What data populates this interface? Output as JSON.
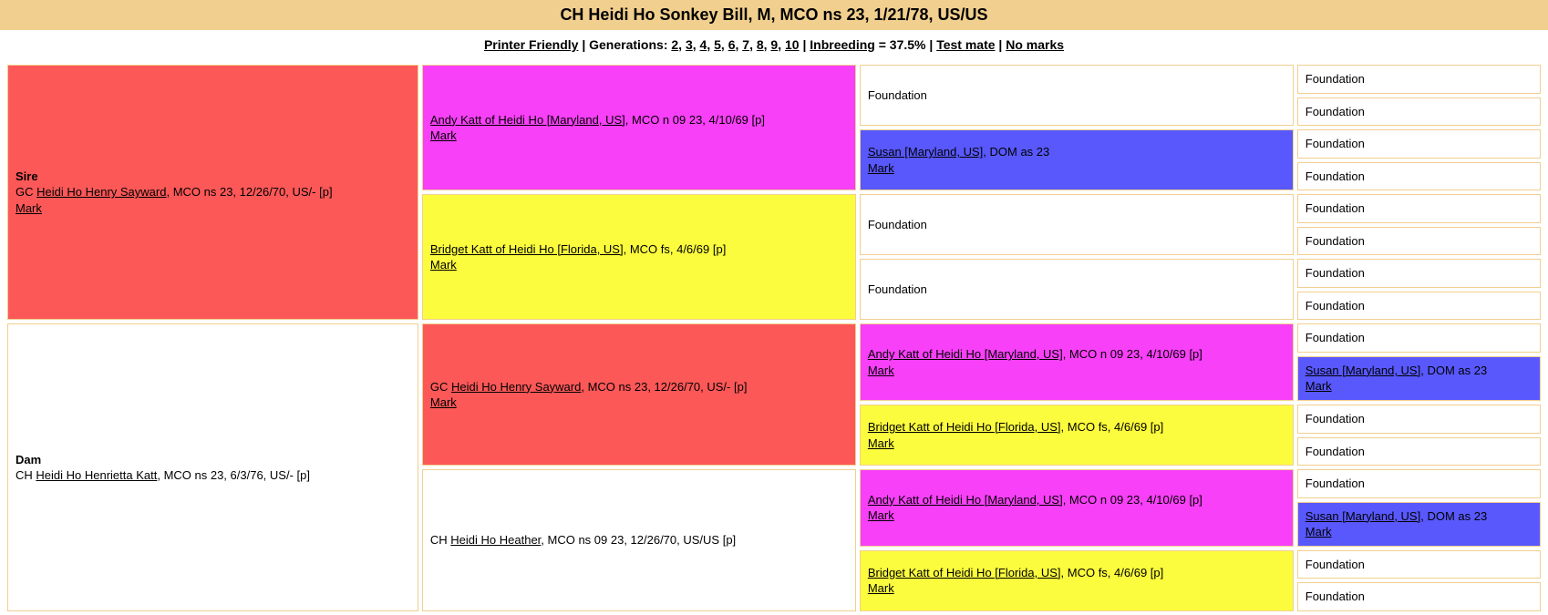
{
  "title": "CH Heidi Ho Sonkey Bill, M, MCO ns 23, 1/21/78, US/US",
  "controls": {
    "printer": "Printer Friendly",
    "gen_label": "Generations:",
    "gens": [
      "2",
      "3",
      "4",
      "5",
      "6",
      "7",
      "8",
      "9",
      "10"
    ],
    "inbreeding_label": "Inbreeding",
    "inbreeding_value": " = 37.5%",
    "testmate": "Test mate",
    "nomarks": "No marks"
  },
  "foundation": "Foundation",
  "mark": "Mark",
  "colors": {
    "red": "#fc5858",
    "magenta": "#f740f7",
    "yellow": "#fcfc3e",
    "blue": "#5858fc",
    "white": "#ffffff"
  },
  "cats": {
    "sire": {
      "label": "Sire",
      "prefix": "GC ",
      "name": "Heidi Ho Henry Sayward",
      "suffix": ", MCO ns 23, 12/26/70, US/- [p]"
    },
    "dam": {
      "label": "Dam",
      "prefix": "CH ",
      "name": "Heidi Ho Henrietta Katt",
      "suffix": ", MCO ns 23, 6/3/76, US/- [p]"
    },
    "andy": {
      "name": "Andy Katt of Heidi Ho [Maryland, US]",
      "suffix": ", MCO n 09 23, 4/10/69 [p]"
    },
    "bridget": {
      "name": "Bridget Katt of Heidi Ho [Florida, US]",
      "suffix": ", MCO fs, 4/6/69 [p]"
    },
    "susan": {
      "name": "Susan [Maryland, US]",
      "suffix": ", DOM as 23"
    },
    "henry2": {
      "prefix": "GC ",
      "name": "Heidi Ho Henry Sayward",
      "suffix": ", MCO ns 23, 12/26/70, US/- [p]"
    },
    "heather": {
      "prefix": "CH ",
      "name": "Heidi Ho Heather",
      "suffix": ", MCO ns 09 23, 12/26/70, US/US [p]"
    }
  },
  "col_widths": [
    "27%",
    "28.5%",
    "28.5%",
    "16%"
  ]
}
